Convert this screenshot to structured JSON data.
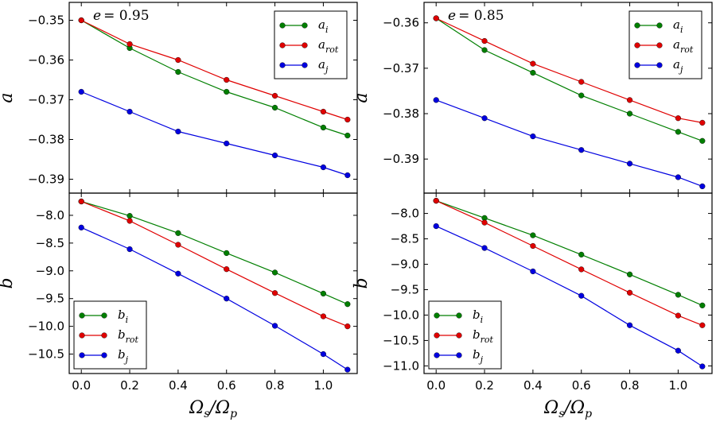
{
  "chart_data": [
    {
      "type": "line",
      "panel": "top-left",
      "annotation": "e = 0.95",
      "annotation_var": "e",
      "annotation_val": "= 0.95",
      "ylabel": "a",
      "xlabel": "",
      "x": [
        0.0,
        0.2,
        0.4,
        0.6,
        0.8,
        1.0,
        1.1
      ],
      "xlim": [
        -0.05,
        1.14
      ],
      "ylim": [
        -0.3935,
        -0.3455
      ],
      "xticks": [
        0.0,
        0.2,
        0.4,
        0.6,
        0.8,
        1.0
      ],
      "xtick_labels": [
        "0.0",
        "0.2",
        "0.4",
        "0.6",
        "0.8",
        "1.0"
      ],
      "yticks": [
        -0.35,
        -0.36,
        -0.37,
        -0.38,
        -0.39
      ],
      "ytick_labels": [
        "−0.35",
        "−0.36",
        "−0.37",
        "−0.38",
        "−0.39"
      ],
      "show_xtick_labels": false,
      "legend_position": "top-right",
      "series": [
        {
          "name": "a_i",
          "base": "a",
          "sub": "i",
          "color": "#007f00",
          "values": [
            -0.35,
            -0.357,
            -0.363,
            -0.368,
            -0.372,
            -0.377,
            -0.379
          ]
        },
        {
          "name": "a_rot",
          "base": "a",
          "sub": "rot",
          "color": "#e00000",
          "values": [
            -0.35,
            -0.356,
            -0.36,
            -0.365,
            -0.369,
            -0.373,
            -0.375
          ]
        },
        {
          "name": "a_j",
          "base": "a",
          "sub": "j",
          "color": "#0000e0",
          "values": [
            -0.368,
            -0.373,
            -0.378,
            -0.381,
            -0.384,
            -0.387,
            -0.389
          ]
        }
      ]
    },
    {
      "type": "line",
      "panel": "top-right",
      "annotation": "e = 0.85",
      "annotation_var": "e",
      "annotation_val": "= 0.85",
      "ylabel": "a",
      "xlabel": "",
      "x": [
        0.0,
        0.2,
        0.4,
        0.6,
        0.8,
        1.0,
        1.1
      ],
      "xlim": [
        -0.05,
        1.14
      ],
      "ylim": [
        -0.3975,
        -0.3555
      ],
      "xticks": [
        0.0,
        0.2,
        0.4,
        0.6,
        0.8,
        1.0
      ],
      "xtick_labels": [
        "0.0",
        "0.2",
        "0.4",
        "0.6",
        "0.8",
        "1.0"
      ],
      "yticks": [
        -0.36,
        -0.37,
        -0.38,
        -0.39
      ],
      "ytick_labels": [
        "−0.36",
        "−0.37",
        "−0.38",
        "−0.39"
      ],
      "show_xtick_labels": false,
      "legend_position": "top-right",
      "series": [
        {
          "name": "a_i",
          "base": "a",
          "sub": "i",
          "color": "#007f00",
          "values": [
            -0.359,
            -0.366,
            -0.371,
            -0.376,
            -0.38,
            -0.384,
            -0.386
          ]
        },
        {
          "name": "a_rot",
          "base": "a",
          "sub": "rot",
          "color": "#e00000",
          "values": [
            -0.359,
            -0.364,
            -0.369,
            -0.373,
            -0.377,
            -0.381,
            -0.382
          ]
        },
        {
          "name": "a_j",
          "base": "a",
          "sub": "j",
          "color": "#0000e0",
          "values": [
            -0.377,
            -0.381,
            -0.385,
            -0.388,
            -0.391,
            -0.394,
            -0.396
          ]
        }
      ]
    },
    {
      "type": "line",
      "panel": "bottom-left",
      "ylabel": "b",
      "xlabel": "Ω_s/Ω_p",
      "x": [
        0.0,
        0.2,
        0.4,
        0.6,
        0.8,
        1.0,
        1.1
      ],
      "xlim": [
        -0.05,
        1.14
      ],
      "ylim": [
        -10.85,
        -7.6
      ],
      "xticks": [
        0.0,
        0.2,
        0.4,
        0.6,
        0.8,
        1.0
      ],
      "xtick_labels": [
        "0.0",
        "0.2",
        "0.4",
        "0.6",
        "0.8",
        "1.0"
      ],
      "yticks": [
        -8.0,
        -8.5,
        -9.0,
        -9.5,
        -10.0,
        -10.5
      ],
      "ytick_labels": [
        "−8.0",
        "−8.5",
        "−9.0",
        "−9.5",
        "−10.0",
        "−10.5"
      ],
      "show_xtick_labels": true,
      "legend_position": "bottom-left",
      "series": [
        {
          "name": "b_i",
          "base": "b",
          "sub": "i",
          "color": "#007f00",
          "values": [
            -7.75,
            -8.01,
            -8.32,
            -8.68,
            -9.03,
            -9.41,
            -9.6
          ]
        },
        {
          "name": "b_rot",
          "base": "b",
          "sub": "rot",
          "color": "#e00000",
          "values": [
            -7.75,
            -8.1,
            -8.53,
            -8.97,
            -9.4,
            -9.82,
            -10.0
          ]
        },
        {
          "name": "b_j",
          "base": "b",
          "sub": "j",
          "color": "#0000e0",
          "values": [
            -8.22,
            -8.61,
            -9.05,
            -9.5,
            -9.99,
            -10.5,
            -10.78
          ]
        }
      ]
    },
    {
      "type": "line",
      "panel": "bottom-right",
      "ylabel": "b",
      "xlabel": "Ω_s/Ω_p",
      "x": [
        0.0,
        0.2,
        0.4,
        0.6,
        0.8,
        1.0,
        1.1
      ],
      "xlim": [
        -0.05,
        1.14
      ],
      "ylim": [
        -11.15,
        -7.6
      ],
      "xticks": [
        0.0,
        0.2,
        0.4,
        0.6,
        0.8,
        1.0
      ],
      "xtick_labels": [
        "0.0",
        "0.2",
        "0.4",
        "0.6",
        "0.8",
        "1.0"
      ],
      "yticks": [
        -8.0,
        -8.5,
        -9.0,
        -9.5,
        -10.0,
        -10.5,
        -11.0
      ],
      "ytick_labels": [
        "−8.0",
        "−8.5",
        "−9.0",
        "−9.5",
        "−10.0",
        "−10.5",
        "−11.0"
      ],
      "show_xtick_labels": true,
      "legend_position": "bottom-left",
      "series": [
        {
          "name": "b_i",
          "base": "b",
          "sub": "i",
          "color": "#007f00",
          "values": [
            -7.75,
            -8.09,
            -8.43,
            -8.81,
            -9.2,
            -9.6,
            -9.81
          ]
        },
        {
          "name": "b_rot",
          "base": "b",
          "sub": "rot",
          "color": "#e00000",
          "values": [
            -7.75,
            -8.18,
            -8.64,
            -9.1,
            -9.56,
            -10.01,
            -10.2
          ]
        },
        {
          "name": "b_j",
          "base": "b",
          "sub": "j",
          "color": "#0000e0",
          "values": [
            -8.25,
            -8.68,
            -9.14,
            -9.62,
            -10.2,
            -10.7,
            -11.01
          ]
        }
      ]
    }
  ]
}
